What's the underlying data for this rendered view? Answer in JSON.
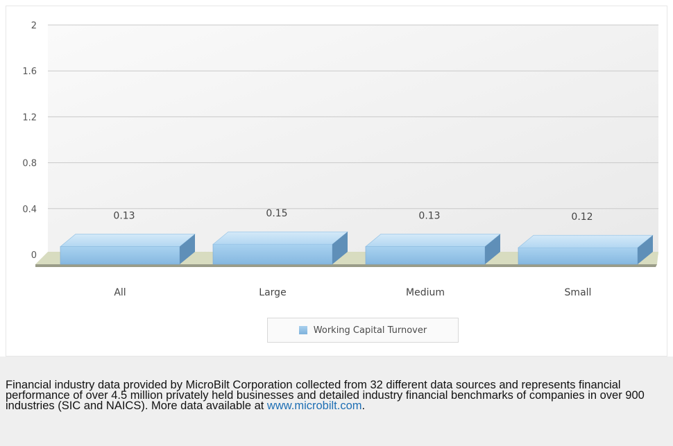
{
  "chart_data": {
    "type": "bar",
    "categories": [
      "All",
      "Large",
      "Medium",
      "Small"
    ],
    "series": [
      {
        "name": "Working Capital Turnover",
        "values": [
          0.13,
          0.15,
          0.13,
          0.12
        ]
      }
    ],
    "data_labels": [
      "0.13",
      "0.15",
      "0.13",
      "0.12"
    ],
    "y_ticks": [
      "0",
      "0.4",
      "0.8",
      "1.2",
      "1.6",
      "2"
    ],
    "ylim": [
      0,
      2
    ],
    "grid": true,
    "legend_position": "bottom-center",
    "title": "",
    "xlabel": "",
    "ylabel": "",
    "colors": {
      "bar": "#8fc0e6",
      "floor": "#d8dcc0"
    }
  },
  "legend": {
    "label": "Working Capital Turnover"
  },
  "footnote": {
    "text": "Financial industry data provided by MicroBilt Corporation collected from 32 different data sources and represents financial performance of over 4.5 million privately held businesses and detailed industry financial benchmarks of companies in over 900 industries (SIC and NAICS). More data available at ",
    "link": "www.microbilt.com",
    "suffix": "."
  }
}
